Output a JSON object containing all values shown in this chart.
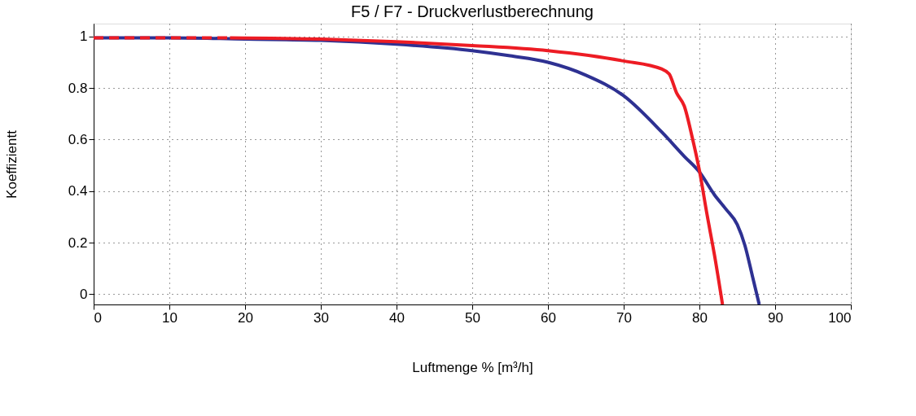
{
  "chart_data": {
    "type": "line",
    "title": "F5 / F7 - Druckverlustberechnung",
    "xlabel": "Luftmenge % [m³/h]",
    "ylabel": "Koeffizientt",
    "series": [
      {
        "color": "#2e3192",
        "line_style": "solid",
        "x": [
          0,
          10,
          20,
          30,
          40,
          50,
          55,
          60,
          65,
          70,
          75,
          78,
          80,
          82,
          83.5,
          85,
          86,
          87,
          87.9
        ],
        "values": [
          0.995,
          0.995,
          0.99,
          0.985,
          0.97,
          0.945,
          0.925,
          0.9,
          0.85,
          0.77,
          0.63,
          0.535,
          0.474,
          0.385,
          0.33,
          0.27,
          0.19,
          0.07,
          -0.04
        ]
      },
      {
        "color": "#ed1c24",
        "line_style": "solid",
        "x": [
          18,
          30,
          40,
          50,
          60,
          70,
          75,
          76,
          77,
          78,
          79,
          80,
          81,
          82,
          83.05
        ],
        "values": [
          0.995,
          0.99,
          0.98,
          0.965,
          0.945,
          0.905,
          0.874,
          0.855,
          0.78,
          0.73,
          0.615,
          0.48,
          0.31,
          0.15,
          -0.04
        ]
      },
      {
        "color": "#ed1c24",
        "line_style": "dashed",
        "x": [
          0,
          18
        ],
        "values": [
          0.995,
          0.995
        ]
      }
    ],
    "xlim": [
      0,
      100
    ],
    "xticks": [
      0,
      10,
      20,
      30,
      40,
      50,
      60,
      70,
      80,
      90,
      100
    ],
    "ylim": [
      -0.04,
      1.05
    ],
    "yticks": [
      0,
      0.2,
      0.4,
      0.6,
      0.8,
      1
    ],
    "grid": true
  }
}
